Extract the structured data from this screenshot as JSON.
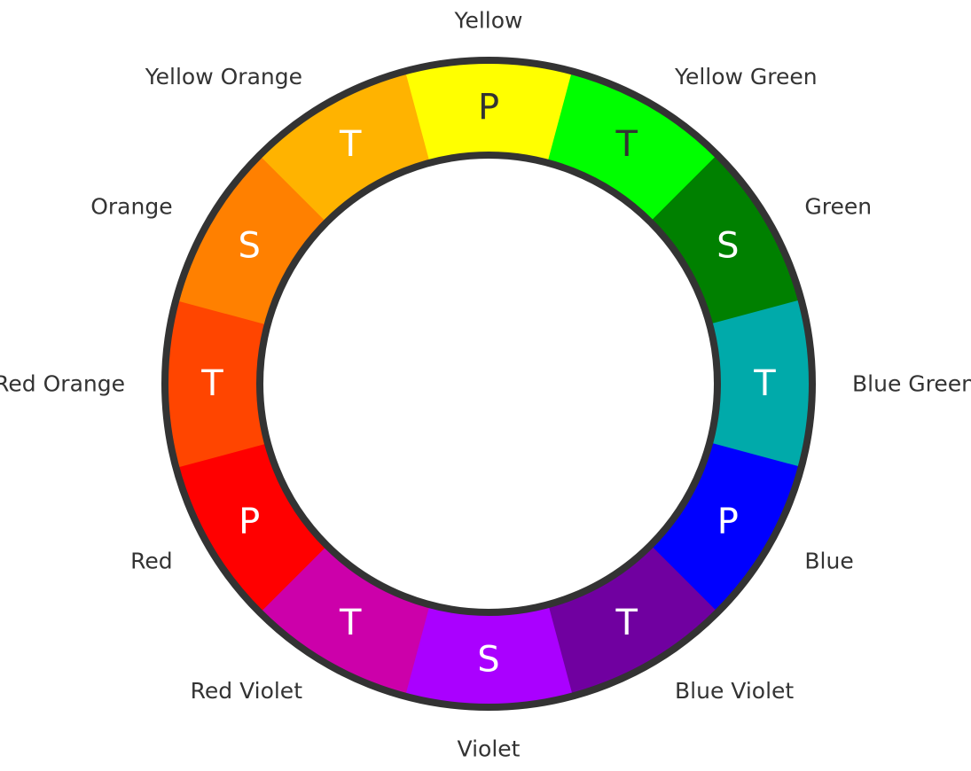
{
  "segments": [
    {
      "label": "Yellow",
      "letter": "P",
      "color": "#FFFF00",
      "letter_color": "#333333"
    },
    {
      "label": "Yellow Green",
      "letter": "T",
      "color": "#00FF00",
      "letter_color": "#333333"
    },
    {
      "label": "Green",
      "letter": "S",
      "color": "#008000",
      "letter_color": "#FFFFFF"
    },
    {
      "label": "Blue Green",
      "letter": "T",
      "color": "#00AAAA",
      "letter_color": "#FFFFFF"
    },
    {
      "label": "Blue",
      "letter": "P",
      "color": "#0000FF",
      "letter_color": "#FFFFFF"
    },
    {
      "label": "Blue Violet",
      "letter": "T",
      "color": "#7000A0",
      "letter_color": "#FFFFFF"
    },
    {
      "label": "Violet",
      "letter": "S",
      "color": "#AA00FF",
      "letter_color": "#FFFFFF"
    },
    {
      "label": "Red Violet",
      "letter": "T",
      "color": "#CC00AA",
      "letter_color": "#FFFFFF"
    },
    {
      "label": "Red",
      "letter": "P",
      "color": "#FF0000",
      "letter_color": "#FFFFFF"
    },
    {
      "label": "Red Orange",
      "letter": "T",
      "color": "#FF4500",
      "letter_color": "#FFFFFF"
    },
    {
      "label": "Orange",
      "letter": "S",
      "color": "#FF8000",
      "letter_color": "#FFFFFF"
    },
    {
      "label": "Yellow Orange",
      "letter": "T",
      "color": "#FFB300",
      "letter_color": "#FFFFFF"
    }
  ],
  "ring_color": "#333333"
}
